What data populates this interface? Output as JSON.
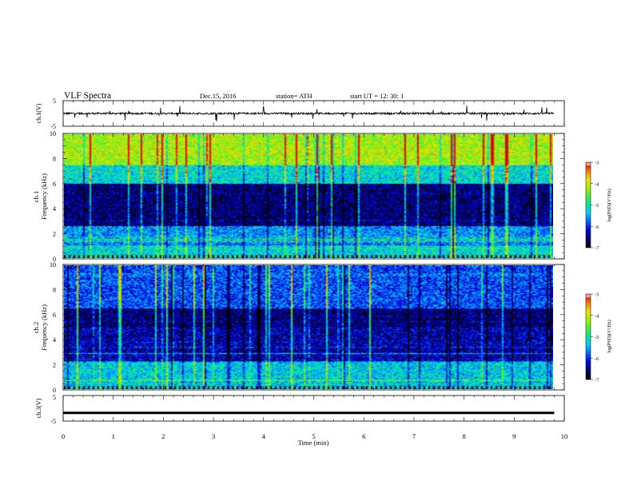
{
  "header": {
    "title": "VLF  Spectra",
    "date": "Dec.15, 2016",
    "station": "station= ATH",
    "start": "start  UT  =     12: 30: 1"
  },
  "colors": {
    "waveform": "#000000",
    "colormap": [
      "#000000",
      "#00007a",
      "#0000e0",
      "#0060ff",
      "#00c8ff",
      "#00e8a0",
      "#40f040",
      "#a8f000",
      "#f0e000",
      "#ff7800",
      "#e00000",
      "#ffffff"
    ]
  },
  "chart_data": [
    {
      "type": "line",
      "name": "ch1-waveform",
      "ylabel": "ch.1(V)",
      "ylim": [
        -5,
        5
      ],
      "yticks": [
        "5",
        "-5"
      ],
      "xlim": [
        0,
        10
      ],
      "baseline": 0,
      "description_values": {
        "typical_amplitude": 0.6,
        "spike_max": 3.2
      }
    },
    {
      "type": "heatmap",
      "name": "ch1-spectrogram",
      "channel_label": "ch.1",
      "ylabel": "Frequency  (kHz)",
      "ylim": [
        0,
        10
      ],
      "yticks": [
        "0",
        "2",
        "4",
        "6",
        "8",
        "10"
      ],
      "xlim": [
        0,
        9.8
      ],
      "colorbar": {
        "label": "log(PSD)(V²/Hz)",
        "range": [
          -7,
          -3
        ],
        "ticks": [
          "-3",
          "-4",
          "-5",
          "-6",
          "-7"
        ]
      },
      "bands_khz": [
        {
          "from": 0,
          "to": 1.0,
          "level": -5.2
        },
        {
          "from": 1.0,
          "to": 2.6,
          "level": -5.6
        },
        {
          "from": 2.6,
          "to": 6.0,
          "level": -6.6
        },
        {
          "from": 6.0,
          "to": 7.5,
          "level": -5.2
        },
        {
          "from": 7.5,
          "to": 10,
          "level": -4.2
        }
      ]
    },
    {
      "type": "heatmap",
      "name": "ch2-spectrogram",
      "channel_label": "ch.2",
      "ylabel": "Frequency  (kHz)",
      "ylim": [
        0,
        10
      ],
      "yticks": [
        "0",
        "2",
        "4",
        "6",
        "8",
        "10"
      ],
      "xlim": [
        0,
        9.8
      ],
      "colorbar": {
        "label": "log(PSD)(V²/Hz)",
        "range": [
          -7,
          -3
        ],
        "ticks": [
          "-3",
          "-4",
          "-5",
          "-6",
          "-7"
        ]
      },
      "bands_khz": [
        {
          "from": 0,
          "to": 2.2,
          "level": -5.3
        },
        {
          "from": 2.2,
          "to": 5.0,
          "level": -6.4
        },
        {
          "from": 5.0,
          "to": 6.5,
          "level": -6.6
        },
        {
          "from": 6.5,
          "to": 10,
          "level": -5.9
        }
      ]
    },
    {
      "type": "line",
      "name": "ch3-waveform",
      "ylabel": "ch.3(V)",
      "ylim": [
        -5,
        5
      ],
      "yticks": [
        "5",
        "-5"
      ],
      "xlim": [
        0,
        10
      ],
      "constant_value": -1.8
    }
  ],
  "xaxis": {
    "label": "Time  (min)",
    "ticks": [
      "0",
      "1",
      "2",
      "3",
      "4",
      "5",
      "6",
      "7",
      "8",
      "9",
      "10"
    ],
    "range": [
      0,
      10
    ]
  }
}
